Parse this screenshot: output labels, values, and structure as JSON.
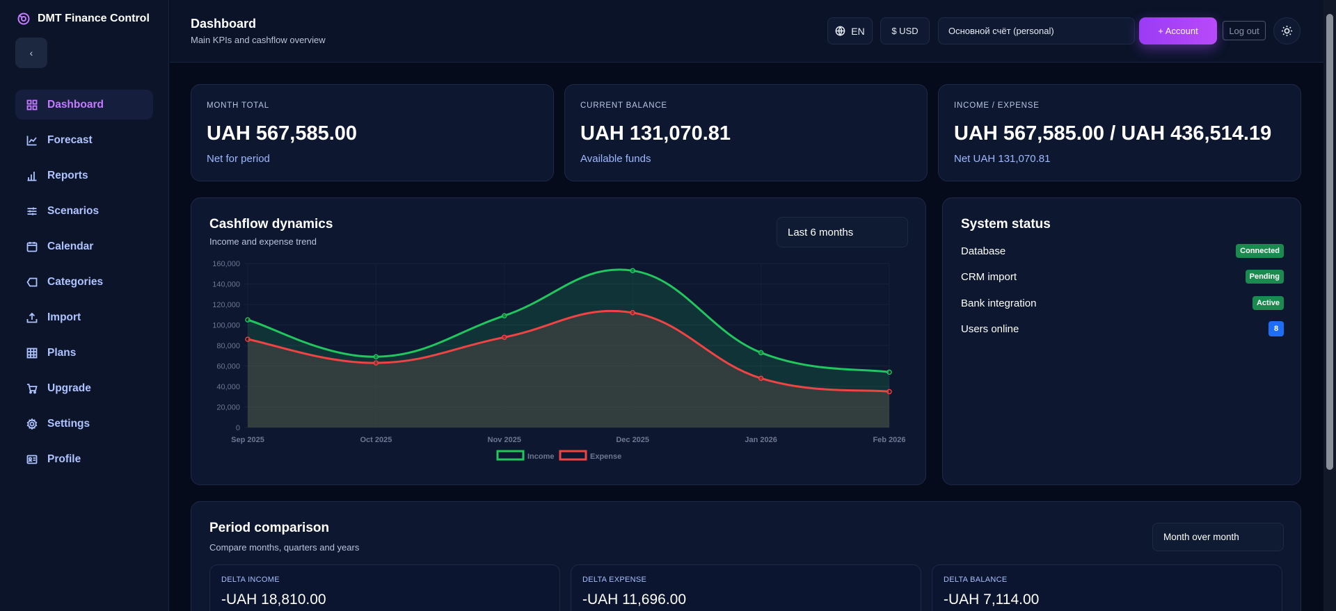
{
  "app": {
    "title": "DMT Finance Control"
  },
  "sidebar": {
    "items": [
      {
        "label": "Dashboard",
        "icon": "grid-icon",
        "active": true
      },
      {
        "label": "Forecast",
        "icon": "trend-icon"
      },
      {
        "label": "Reports",
        "icon": "bars-icon"
      },
      {
        "label": "Scenarios",
        "icon": "sliders-icon"
      },
      {
        "label": "Calendar",
        "icon": "calendar-icon"
      },
      {
        "label": "Categories",
        "icon": "tag-icon"
      },
      {
        "label": "Import",
        "icon": "upload-icon"
      },
      {
        "label": "Plans",
        "icon": "table-icon"
      },
      {
        "label": "Upgrade",
        "icon": "cart-icon"
      },
      {
        "label": "Settings",
        "icon": "gear-icon"
      },
      {
        "label": "Profile",
        "icon": "id-card-icon"
      }
    ]
  },
  "header": {
    "title": "Dashboard",
    "subtitle": "Main KPIs and cashflow overview",
    "lang": "EN",
    "currency": "$ USD",
    "account": "Основной счёт (personal)",
    "add_account": "+ Account",
    "logout": "Log out"
  },
  "kpis": [
    {
      "label": "MONTH TOTAL",
      "value": "UAH 567,585.00",
      "note": "Net for period"
    },
    {
      "label": "CURRENT BALANCE",
      "value": "UAH 131,070.81",
      "note": "Available funds"
    },
    {
      "label": "INCOME / EXPENSE",
      "value": "UAH 567,585.00 / UAH 436,514.19",
      "note": "Net UAH 131,070.81"
    }
  ],
  "cashflow": {
    "title": "Cashflow dynamics",
    "subtitle": "Income and expense trend",
    "range": "Last 6 months"
  },
  "chart_data": {
    "type": "area",
    "categories": [
      "Sep 2025",
      "Oct 2025",
      "Nov 2025",
      "Dec 2025",
      "Jan 2026",
      "Feb 2026"
    ],
    "series": [
      {
        "name": "Income",
        "values": [
          105000,
          69000,
          109000,
          153000,
          73000,
          54000
        ],
        "color": "#22c55e"
      },
      {
        "name": "Expense",
        "values": [
          86000,
          63000,
          88000,
          112000,
          48000,
          35000
        ],
        "color": "#ef4444"
      }
    ],
    "ylim": [
      0,
      160000
    ],
    "yticks": [
      "0",
      "20,000",
      "40,000",
      "60,000",
      "80,000",
      "100,000",
      "120,000",
      "140,000",
      "160,000"
    ],
    "legend": "bottom",
    "grid": true
  },
  "status": {
    "title": "System status",
    "rows": [
      {
        "label": "Database",
        "badge": "Connected",
        "color": "green"
      },
      {
        "label": "CRM import",
        "badge": "Pending",
        "color": "green"
      },
      {
        "label": "Bank integration",
        "badge": "Active",
        "color": "green"
      },
      {
        "label": "Users online",
        "badge": "8",
        "color": "blue"
      }
    ]
  },
  "period": {
    "title": "Period comparison",
    "subtitle": "Compare months, quarters and years",
    "mode": "Month over month",
    "deltas": [
      {
        "label": "DELTA INCOME",
        "value": "-UAH 18,810.00"
      },
      {
        "label": "DELTA EXPENSE",
        "value": "-UAH 11,696.00"
      },
      {
        "label": "DELTA BALANCE",
        "value": "-UAH 7,114.00"
      }
    ]
  }
}
